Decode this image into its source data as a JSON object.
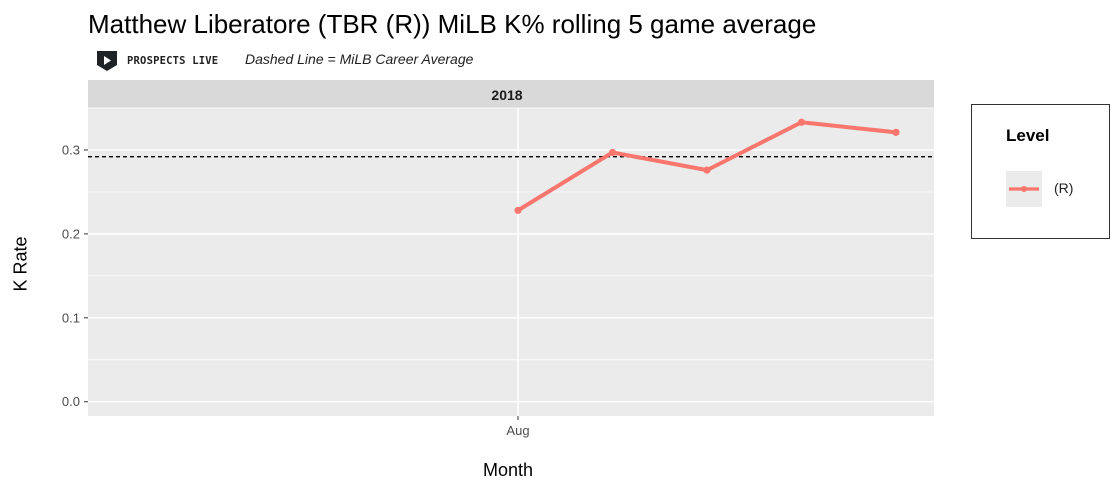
{
  "title": "Matthew Liberatore (TBR (R)) MiLB K% rolling 5 game average",
  "brand": {
    "name": "PROSPECTS LIVE",
    "logo_icon": "play-shield-icon"
  },
  "subtitle": "Dashed Line = MiLB Career Average",
  "colors": {
    "series": "#F8766D",
    "panel": "#EBEBEB",
    "strip": "#D9D9D9",
    "reference": "#000000"
  },
  "chart_data": {
    "type": "line",
    "facet": "2018",
    "xlabel": "Month",
    "ylabel": "K Rate",
    "x_ticks": [
      "Aug"
    ],
    "y_ticks": [
      0.0,
      0.1,
      0.2,
      0.3
    ],
    "ylim": [
      -0.017,
      0.35
    ],
    "reference_line": {
      "value": 0.292,
      "style": "dashed",
      "label": "MiLB Career Average"
    },
    "series": [
      {
        "name": "(R)",
        "color": "#F8766D",
        "points": [
          {
            "x": "Aug",
            "y": 0.228
          },
          {
            "x": "Aug",
            "y": 0.297
          },
          {
            "x": "Aug",
            "y": 0.276
          },
          {
            "x": "Aug",
            "y": 0.333
          },
          {
            "x": "Aug",
            "y": 0.321
          }
        ]
      }
    ],
    "legend": {
      "title": "Level",
      "entries": [
        "(R)"
      ],
      "position": "right"
    },
    "grid": true
  }
}
